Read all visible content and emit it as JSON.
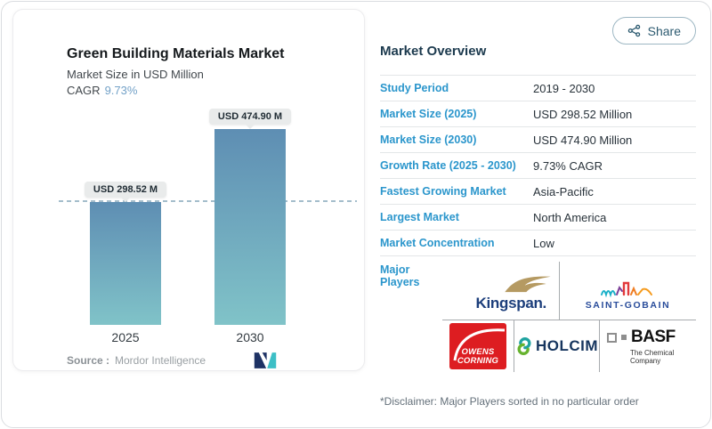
{
  "share": {
    "label": "Share"
  },
  "chart": {
    "title": "Green Building Materials Market",
    "subtitle": "Market Size in USD Million",
    "cagr_label": "CAGR",
    "cagr_value": "9.73%",
    "source_prefix": "Source :",
    "source_name": "Mordor Intelligence"
  },
  "chart_data": {
    "type": "bar",
    "title": "Green Building Materials Market",
    "subtitle": "Market Size in USD Million",
    "unit": "USD Million",
    "categories": [
      "2025",
      "2030"
    ],
    "values": [
      298.52,
      474.9
    ],
    "bars": [
      {
        "category": "2025",
        "value": 298.52,
        "label": "USD 298.52 M"
      },
      {
        "category": "2030",
        "value": 474.9,
        "label": "USD 474.90 M"
      }
    ],
    "cagr": "9.73%",
    "ylim": [
      0,
      474.9
    ],
    "threshold_line_at": 298.52,
    "grid": false,
    "legend": false,
    "bar_color_top": "#5e8eb3",
    "bar_color_bottom": "#80c3c8"
  },
  "overview": {
    "title": "Market Overview",
    "rows": [
      {
        "label": "Study Period",
        "value": "2019 - 2030"
      },
      {
        "label": "Market Size (2025)",
        "value": "USD 298.52 Million"
      },
      {
        "label": "Market Size (2030)",
        "value": "USD 474.90 Million"
      },
      {
        "label": "Growth Rate (2025 - 2030)",
        "value": "9.73% CAGR"
      },
      {
        "label": "Fastest Growing Market",
        "value": "Asia-Pacific"
      },
      {
        "label": "Largest Market",
        "value": "North America"
      },
      {
        "label": "Market Concentration",
        "value": "Low"
      }
    ],
    "major_players_label": "Major Players",
    "major_players": [
      {
        "name": "Kingspan",
        "wordmark": "Kingspan."
      },
      {
        "name": "Saint-Gobain",
        "wordmark": "SAINT-GOBAIN"
      },
      {
        "name": "Owens Corning",
        "wordmark_line1": "OWENS",
        "wordmark_line2": "CORNING"
      },
      {
        "name": "Holcim",
        "wordmark": "HOLCIM"
      },
      {
        "name": "BASF",
        "wordmark": "BASF",
        "tagline": "The Chemical Company"
      }
    ],
    "disclaimer": "*Disclaimer: Major Players sorted in no particular order"
  },
  "colors": {
    "accent_blue": "#2b96cc",
    "heading_navy": "#1c3a4e",
    "cagr_blue": "#74a2c8",
    "dashed_line": "#a4bdcb",
    "pill_bg": "#e9ebeb",
    "owens_red": "#dd1d21"
  }
}
